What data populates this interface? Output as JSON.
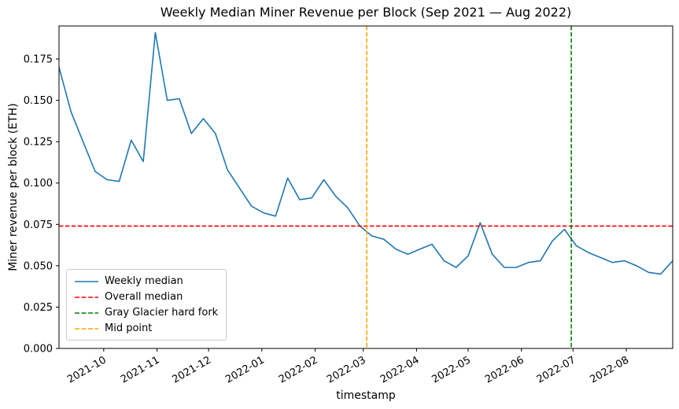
{
  "chart_data": {
    "type": "line",
    "title": "Weekly Median Miner Revenue per Block (Sep 2021 — Aug 2022)",
    "xlabel": "timestamp",
    "ylabel": "Miner revenue per block (ETH)",
    "ylim": [
      0,
      0.195
    ],
    "grid": false,
    "legend_position": "lower left",
    "yticks": [
      0.0,
      0.025,
      0.05,
      0.075,
      0.1,
      0.125,
      0.15,
      0.175
    ],
    "xticks": [
      {
        "label": "2021-10",
        "date": "2021-10-01"
      },
      {
        "label": "2021-11",
        "date": "2021-11-01"
      },
      {
        "label": "2021-12",
        "date": "2021-12-01"
      },
      {
        "label": "2022-01",
        "date": "2022-01-01"
      },
      {
        "label": "2022-02",
        "date": "2022-02-01"
      },
      {
        "label": "2022-03",
        "date": "2022-03-01"
      },
      {
        "label": "2022-04",
        "date": "2022-04-01"
      },
      {
        "label": "2022-05",
        "date": "2022-05-01"
      },
      {
        "label": "2022-06",
        "date": "2022-06-01"
      },
      {
        "label": "2022-07",
        "date": "2022-07-01"
      },
      {
        "label": "2022-08",
        "date": "2022-08-01"
      }
    ],
    "x": [
      "2021-09-05",
      "2021-09-12",
      "2021-09-19",
      "2021-09-26",
      "2021-10-03",
      "2021-10-10",
      "2021-10-17",
      "2021-10-24",
      "2021-10-31",
      "2021-11-07",
      "2021-11-14",
      "2021-11-21",
      "2021-11-28",
      "2021-12-05",
      "2021-12-12",
      "2021-12-19",
      "2021-12-26",
      "2022-01-02",
      "2022-01-09",
      "2022-01-16",
      "2022-01-23",
      "2022-01-30",
      "2022-02-06",
      "2022-02-13",
      "2022-02-20",
      "2022-02-27",
      "2022-03-06",
      "2022-03-13",
      "2022-03-20",
      "2022-03-27",
      "2022-04-03",
      "2022-04-10",
      "2022-04-17",
      "2022-04-24",
      "2022-05-01",
      "2022-05-08",
      "2022-05-15",
      "2022-05-22",
      "2022-05-29",
      "2022-06-05",
      "2022-06-12",
      "2022-06-19",
      "2022-06-26",
      "2022-07-03",
      "2022-07-10",
      "2022-07-17",
      "2022-07-24",
      "2022-07-31",
      "2022-08-07",
      "2022-08-14",
      "2022-08-21",
      "2022-08-28"
    ],
    "series": [
      {
        "name": "Weekly median",
        "color": "#1f77b4",
        "style": "solid",
        "values": [
          0.17,
          0.143,
          0.125,
          0.107,
          0.102,
          0.101,
          0.126,
          0.113,
          0.191,
          0.15,
          0.151,
          0.13,
          0.139,
          0.13,
          0.108,
          0.097,
          0.086,
          0.082,
          0.08,
          0.103,
          0.09,
          0.091,
          0.102,
          0.092,
          0.085,
          0.074,
          0.068,
          0.066,
          0.06,
          0.057,
          0.06,
          0.063,
          0.053,
          0.049,
          0.056,
          0.076,
          0.057,
          0.049,
          0.049,
          0.052,
          0.053,
          0.065,
          0.072,
          0.062,
          0.058,
          0.055,
          0.052,
          0.053,
          0.05,
          0.046,
          0.045,
          0.053
        ]
      }
    ],
    "reference_lines": [
      {
        "id": "overall-median-line",
        "label": "Overall median",
        "orientation": "horizontal",
        "value": 0.074,
        "color": "#ff0000",
        "style": "dashed"
      },
      {
        "id": "midpoint-line",
        "label": "Mid point",
        "orientation": "vertical",
        "date": "2022-03-03",
        "color": "#ffa500",
        "style": "dashed"
      },
      {
        "id": "gray-glacier-line",
        "label": "Gray Glacier hard fork",
        "orientation": "vertical",
        "date": "2022-06-30",
        "color": "#008000",
        "style": "dashed"
      }
    ],
    "legend": [
      {
        "label": "Weekly median",
        "color": "#1f77b4",
        "style": "solid"
      },
      {
        "label": "Overall median",
        "color": "#ff0000",
        "style": "dashed"
      },
      {
        "label": "Gray Glacier hard fork",
        "color": "#008000",
        "style": "dashed"
      },
      {
        "label": "Mid point",
        "color": "#ffa500",
        "style": "dashed"
      }
    ]
  }
}
